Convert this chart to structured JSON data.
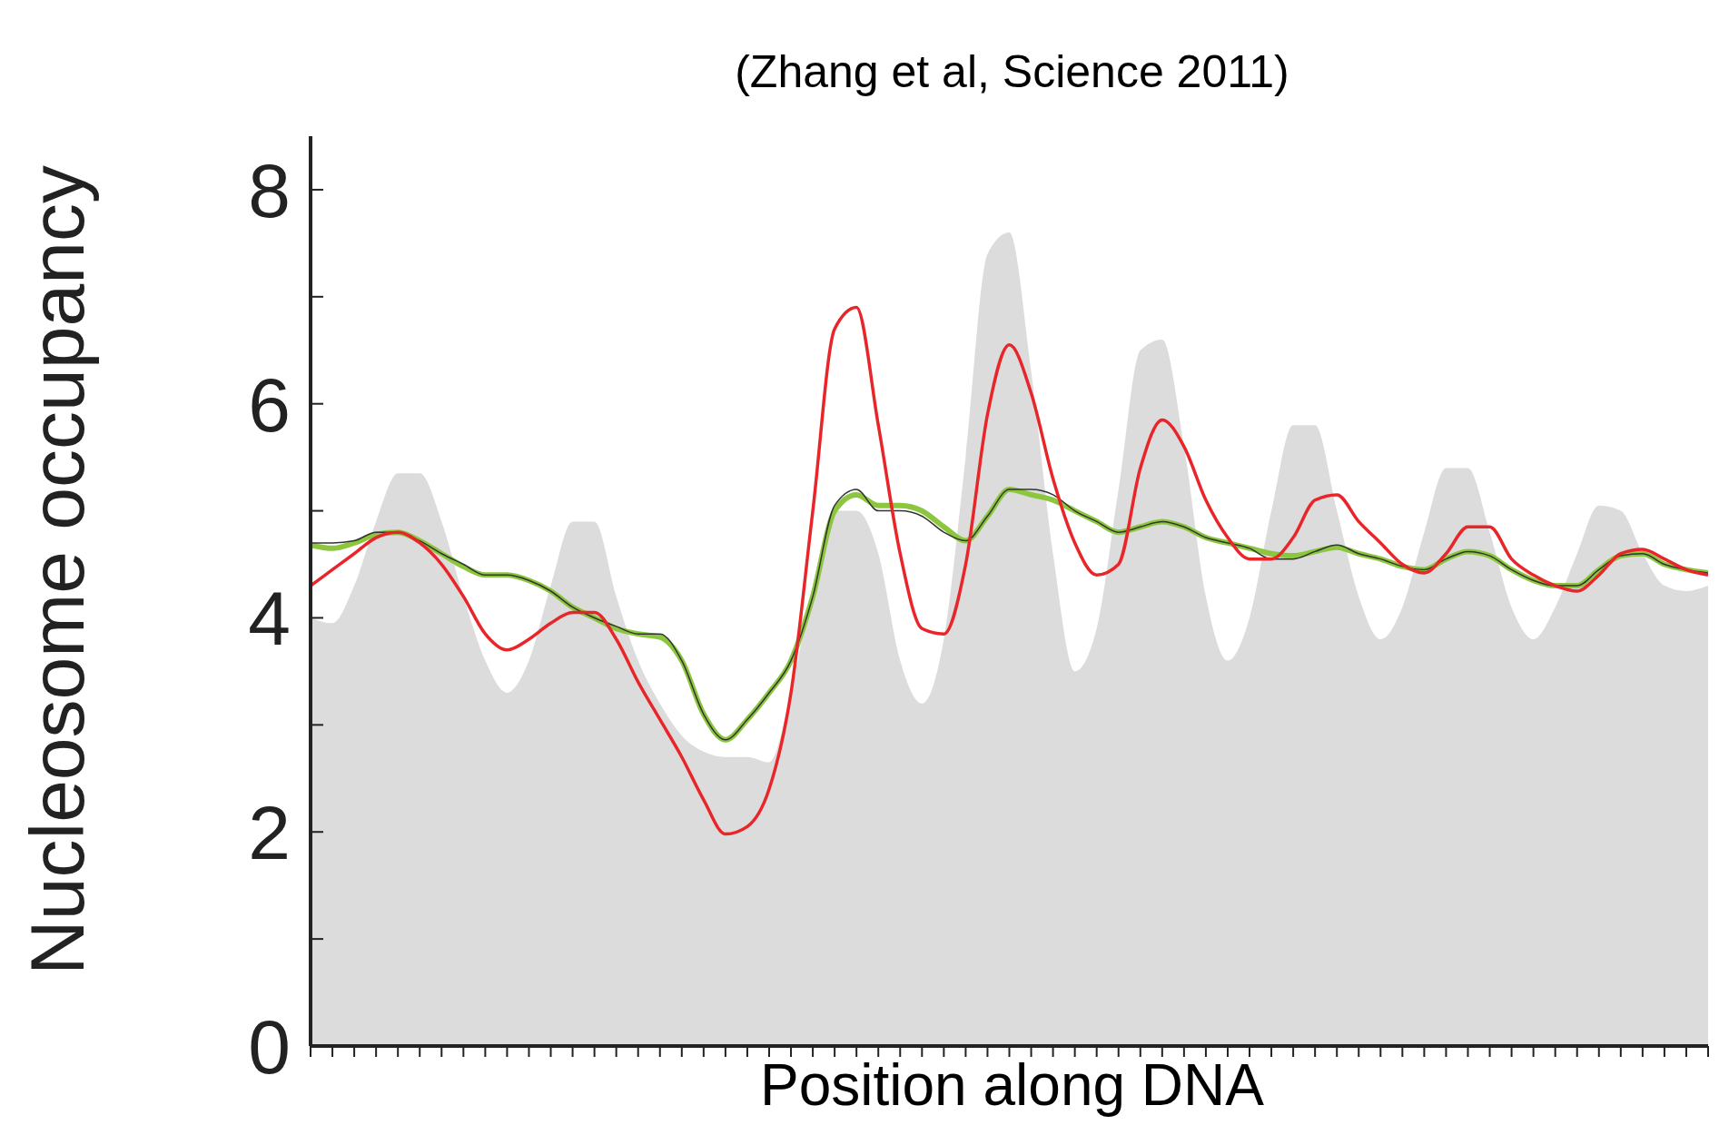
{
  "chart_data": {
    "type": "line",
    "title": "(Zhang et al, Science 2011)",
    "xlabel": "Position along DNA",
    "ylabel": "Nucleosome occupancy",
    "categories": [
      null,
      null,
      null,
      null,
      null,
      null,
      null,
      null,
      null,
      null,
      null,
      null,
      null,
      null,
      null,
      null,
      null,
      null,
      null,
      null,
      null,
      null,
      null,
      null,
      null,
      null,
      null,
      null,
      null,
      null,
      null,
      null,
      null,
      null,
      null,
      null,
      null,
      null,
      null,
      null,
      null,
      null,
      null,
      null,
      null,
      null,
      null,
      null,
      null,
      null,
      null,
      null,
      null,
      null,
      null,
      null,
      null,
      null,
      null,
      null,
      null,
      null,
      null,
      null,
      null
    ],
    "ylim": [
      0,
      8.5
    ],
    "yticks": [
      0,
      {
        "value": 1,
        "label": null
      },
      2,
      {
        "value": 3,
        "label": null
      },
      4,
      {
        "value": 5,
        "label": null
      },
      6,
      {
        "value": 7,
        "label": null
      },
      8
    ],
    "marker": "none",
    "series": [
      {
        "type": "area",
        "color": "#dcdcdc",
        "values": [
          4.0,
          3.95,
          4.3,
          4.9,
          5.35,
          5.35,
          4.9,
          4.2,
          3.6,
          3.3,
          3.6,
          4.3,
          4.9,
          4.9,
          4.2,
          3.6,
          3.2,
          2.9,
          2.75,
          2.7,
          2.7,
          2.65,
          3.3,
          4.3,
          5.0,
          5.0,
          4.6,
          3.6,
          3.2,
          3.8,
          5.5,
          7.4,
          7.6,
          6.3,
          4.6,
          3.5,
          3.9,
          5.2,
          6.5,
          6.6,
          5.6,
          4.2,
          3.6,
          4.0,
          5.0,
          5.8,
          5.8,
          5.0,
          4.2,
          3.8,
          4.1,
          4.8,
          5.4,
          5.4,
          4.8,
          4.1,
          3.8,
          4.1,
          4.6,
          5.05,
          5.0,
          4.6,
          4.3,
          4.25,
          4.3
        ]
      },
      {
        "color": "#8cc63f",
        "values": [
          4.68,
          4.65,
          4.7,
          4.78,
          4.8,
          4.72,
          4.6,
          4.48,
          4.4,
          4.4,
          4.35,
          4.25,
          4.1,
          4.0,
          3.9,
          3.85,
          3.82,
          3.6,
          3.1,
          2.86,
          3.05,
          3.3,
          3.6,
          4.2,
          5.0,
          5.15,
          5.05,
          5.05,
          5.0,
          4.85,
          4.72,
          4.95,
          5.2,
          5.15,
          5.1,
          5.0,
          4.9,
          4.8,
          4.85,
          4.9,
          4.85,
          4.75,
          4.7,
          4.65,
          4.6,
          4.58,
          4.62,
          4.66,
          4.6,
          4.55,
          4.48,
          4.45,
          4.55,
          4.62,
          4.58,
          4.45,
          4.35,
          4.3,
          4.3,
          4.45,
          4.58,
          4.6,
          4.5,
          4.45,
          4.42
        ]
      },
      {
        "color": "#333333",
        "values": [
          4.7,
          4.7,
          4.72,
          4.8,
          4.8,
          4.72,
          4.6,
          4.5,
          4.4,
          4.4,
          4.35,
          4.25,
          4.1,
          4.0,
          3.92,
          3.85,
          3.85,
          3.6,
          3.1,
          2.86,
          3.05,
          3.3,
          3.6,
          4.2,
          5.05,
          5.2,
          5.0,
          5.0,
          4.95,
          4.8,
          4.72,
          4.95,
          5.2,
          5.2,
          5.15,
          5.0,
          4.9,
          4.8,
          4.85,
          4.9,
          4.85,
          4.75,
          4.7,
          4.65,
          4.55,
          4.55,
          4.62,
          4.68,
          4.6,
          4.55,
          4.48,
          4.45,
          4.55,
          4.62,
          4.58,
          4.45,
          4.35,
          4.3,
          4.3,
          4.45,
          4.58,
          4.6,
          4.5,
          4.45,
          4.42
        ]
      },
      {
        "color": "#e8262a",
        "values": [
          4.3,
          4.45,
          4.6,
          4.75,
          4.8,
          4.7,
          4.5,
          4.2,
          3.85,
          3.7,
          3.8,
          3.95,
          4.05,
          4.05,
          3.8,
          3.4,
          3.05,
          2.7,
          2.3,
          1.98,
          2.05,
          2.4,
          3.3,
          5.0,
          6.7,
          6.9,
          5.8,
          4.6,
          3.9,
          3.85,
          4.5,
          5.9,
          6.55,
          6.1,
          5.3,
          4.7,
          4.4,
          4.5,
          5.4,
          5.85,
          5.6,
          5.1,
          4.75,
          4.55,
          4.55,
          4.75,
          5.1,
          5.15,
          4.9,
          4.7,
          4.5,
          4.42,
          4.6,
          4.85,
          4.85,
          4.55,
          4.4,
          4.3,
          4.25,
          4.4,
          4.6,
          4.64,
          4.55,
          4.45,
          4.4
        ]
      }
    ]
  }
}
